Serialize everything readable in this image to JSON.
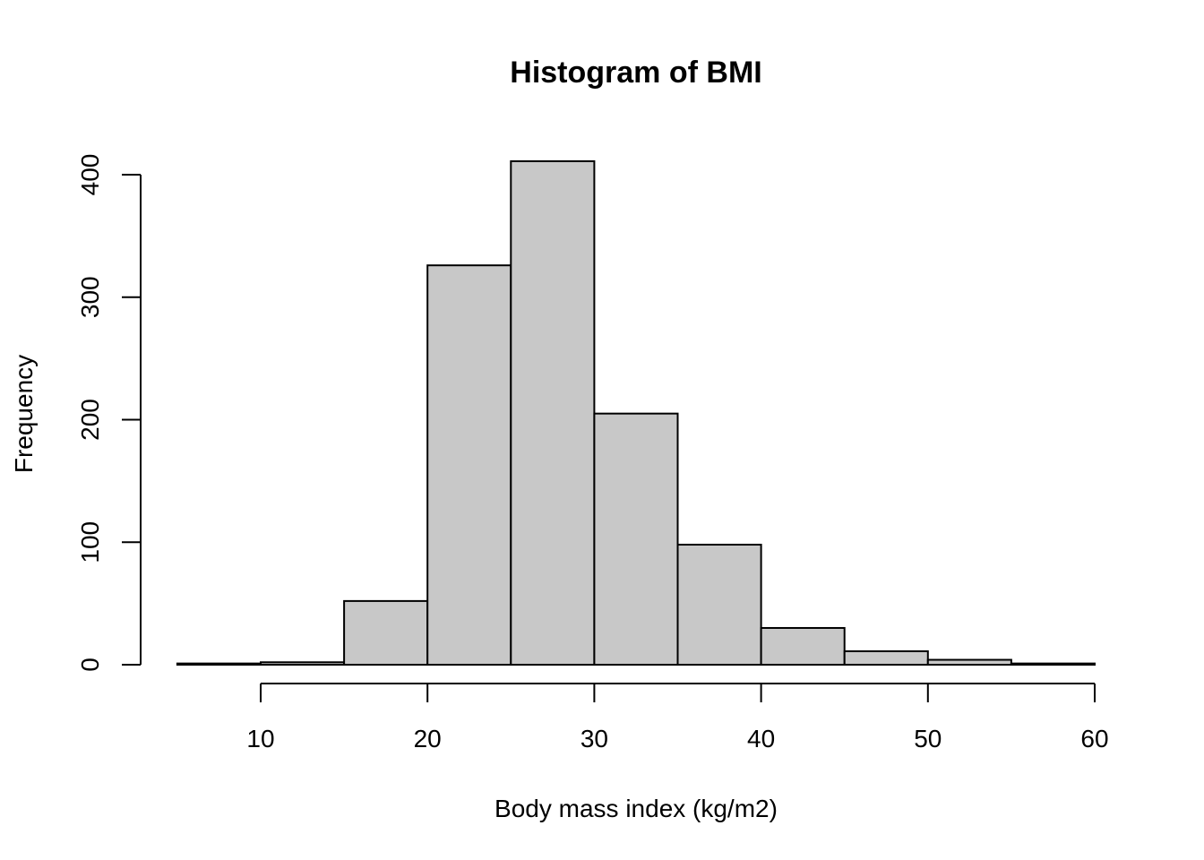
{
  "chart_data": {
    "type": "bar",
    "title": "Histogram of BMI",
    "xlabel": "Body mass index (kg/m2)",
    "ylabel": "Frequency",
    "bins": [
      {
        "start": 5,
        "end": 10,
        "count": 1
      },
      {
        "start": 10,
        "end": 15,
        "count": 2
      },
      {
        "start": 15,
        "end": 20,
        "count": 52
      },
      {
        "start": 20,
        "end": 25,
        "count": 326
      },
      {
        "start": 25,
        "end": 30,
        "count": 411
      },
      {
        "start": 30,
        "end": 35,
        "count": 205
      },
      {
        "start": 35,
        "end": 40,
        "count": 98
      },
      {
        "start": 40,
        "end": 45,
        "count": 30
      },
      {
        "start": 45,
        "end": 50,
        "count": 11
      },
      {
        "start": 50,
        "end": 55,
        "count": 4
      },
      {
        "start": 55,
        "end": 60,
        "count": 1
      }
    ],
    "x_ticks": [
      10,
      20,
      30,
      40,
      50,
      60
    ],
    "y_ticks": [
      0,
      100,
      200,
      300,
      400
    ],
    "xlim": [
      5,
      60
    ],
    "ylim": [
      0,
      400
    ],
    "grid": false,
    "bar_color": "#c8c8c8",
    "edge_color": "#000000"
  }
}
